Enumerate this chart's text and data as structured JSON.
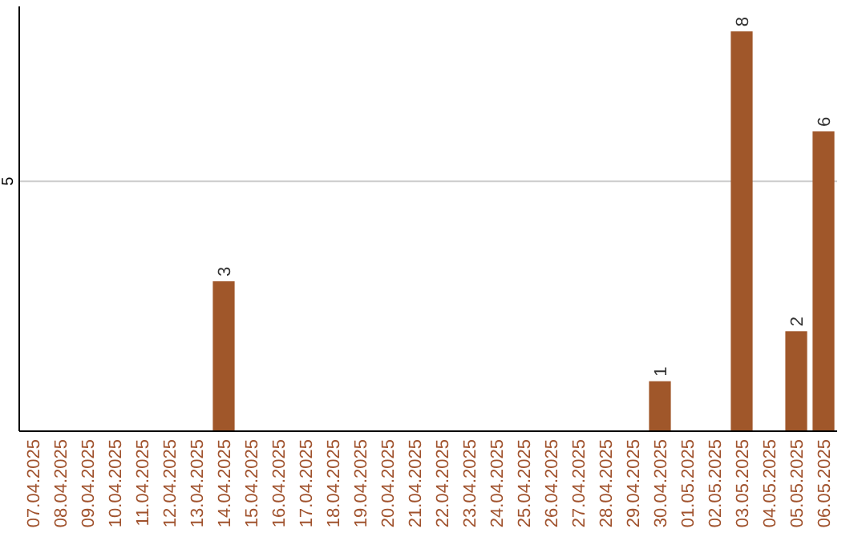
{
  "chart_data": {
    "type": "bar",
    "categories": [
      "07.04.2025",
      "08.04.2025",
      "09.04.2025",
      "10.04.2025",
      "11.04.2025",
      "12.04.2025",
      "13.04.2025",
      "14.04.2025",
      "15.04.2025",
      "16.04.2025",
      "17.04.2025",
      "18.04.2025",
      "19.04.2025",
      "20.04.2025",
      "21.04.2025",
      "22.04.2025",
      "23.04.2025",
      "24.04.2025",
      "25.04.2025",
      "26.04.2025",
      "27.04.2025",
      "28.04.2025",
      "29.04.2025",
      "30.04.2025",
      "01.05.2025",
      "02.05.2025",
      "03.05.2025",
      "04.05.2025",
      "05.05.2025",
      "06.05.2025"
    ],
    "values": [
      0,
      0,
      0,
      0,
      0,
      0,
      0,
      3,
      0,
      0,
      0,
      0,
      0,
      0,
      0,
      0,
      0,
      0,
      0,
      0,
      0,
      0,
      0,
      1,
      0,
      0,
      8,
      0,
      2,
      6
    ],
    "value_labels": [
      null,
      null,
      null,
      null,
      null,
      null,
      null,
      "3",
      null,
      null,
      null,
      null,
      null,
      null,
      null,
      null,
      null,
      null,
      null,
      null,
      null,
      null,
      null,
      "1",
      null,
      null,
      "8",
      null,
      "2",
      "6"
    ],
    "color": "#a0572a",
    "ylim": [
      0,
      8.5
    ],
    "yticks": [
      5
    ],
    "grid": "y"
  }
}
